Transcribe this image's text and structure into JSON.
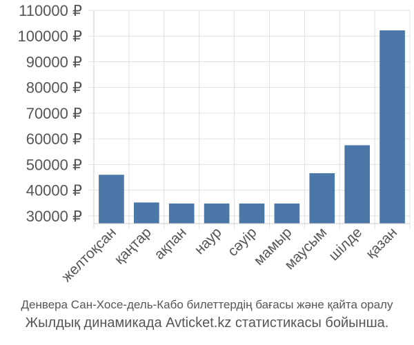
{
  "chart_data": {
    "type": "bar",
    "categories": [
      "желтоқсан",
      "қаңтар",
      "ақпан",
      "наур",
      "сәуір",
      "мамыр",
      "маусым",
      "шілде",
      "қазан"
    ],
    "values": [
      46000,
      35200,
      34800,
      34800,
      34800,
      34800,
      46600,
      57500,
      102200
    ],
    "ylim": [
      27000,
      110000
    ],
    "yticks": [
      30000,
      40000,
      50000,
      60000,
      70000,
      80000,
      90000,
      100000,
      110000
    ],
    "ytick_labels": [
      "30000 ₽",
      "40000 ₽",
      "50000 ₽",
      "60000 ₽",
      "70000 ₽",
      "80000 ₽",
      "90000 ₽",
      "100000 ₽",
      "110000 ₽"
    ],
    "bar_color": "#4a76a8",
    "grid_color": "#e0e0e0",
    "grid": true
  },
  "caption": {
    "line1": "Денвера Сан-Хосе-дель-Кабо билеттердің бағасы және қайта оралу",
    "line2": "Жылдық динамикада Avticket.kz статистикасы бойынша."
  }
}
